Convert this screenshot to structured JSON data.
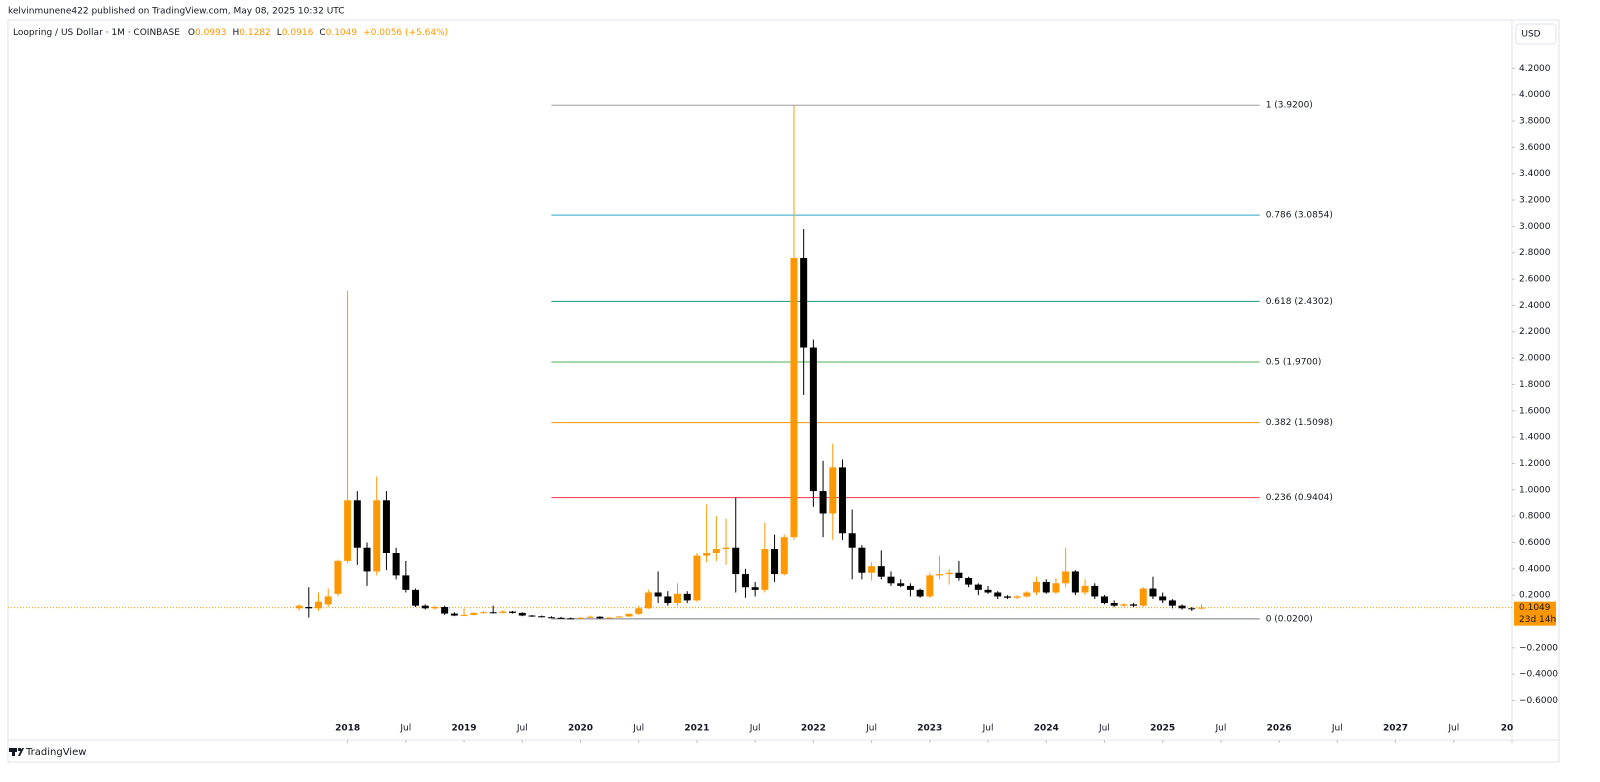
{
  "published": "kelvinmunene422 published on TradingView.com, May 08, 2025 10:32 UTC",
  "brand": "TradingView",
  "chart_data": {
    "type": "candlestick",
    "symbol": "Loopring / US Dollar · 1M · COINBASE",
    "ohlc": [
      {
        "label": "O",
        "value": 0.0993
      },
      {
        "label": "H",
        "value": 0.1282
      },
      {
        "label": "L",
        "value": 0.0916
      },
      {
        "label": "C",
        "value": 0.1049
      }
    ],
    "change": "+0.0056 (+5.64%)",
    "currency": "USD",
    "up_color": "#ff9800",
    "down_color": "#000000",
    "x": [
      "2017-08",
      "2017-09",
      "2017-10",
      "2017-11",
      "2017-12",
      "2018-01",
      "2018-02",
      "2018-03",
      "2018-04",
      "2018-05",
      "2018-06",
      "2018-07",
      "2018-08",
      "2018-09",
      "2018-10",
      "2018-11",
      "2018-12",
      "2019-01",
      "2019-02",
      "2019-03",
      "2019-04",
      "2019-05",
      "2019-06",
      "2019-07",
      "2019-08",
      "2019-09",
      "2019-10",
      "2019-11",
      "2019-12",
      "2020-01",
      "2020-02",
      "2020-03",
      "2020-04",
      "2020-05",
      "2020-06",
      "2020-07",
      "2020-08",
      "2020-09",
      "2020-10",
      "2020-11",
      "2020-12",
      "2021-01",
      "2021-02",
      "2021-03",
      "2021-04",
      "2021-05",
      "2021-06",
      "2021-07",
      "2021-08",
      "2021-09",
      "2021-10",
      "2021-11",
      "2021-12",
      "2022-01",
      "2022-02",
      "2022-03",
      "2022-04",
      "2022-05",
      "2022-06",
      "2022-07",
      "2022-08",
      "2022-09",
      "2022-10",
      "2022-11",
      "2022-12",
      "2023-01",
      "2023-02",
      "2023-03",
      "2023-04",
      "2023-05",
      "2023-06",
      "2023-07",
      "2023-08",
      "2023-09",
      "2023-10",
      "2023-11",
      "2023-12",
      "2024-01",
      "2024-02",
      "2024-03",
      "2024-04",
      "2024-05",
      "2024-06",
      "2024-07",
      "2024-08",
      "2024-09",
      "2024-10",
      "2024-11",
      "2024-12",
      "2025-01",
      "2025-02",
      "2025-03",
      "2025-04",
      "2025-05"
    ],
    "open": [
      0.1,
      0.11,
      0.1,
      0.13,
      0.21,
      0.46,
      0.92,
      0.56,
      0.38,
      0.92,
      0.52,
      0.35,
      0.24,
      0.12,
      0.1,
      0.11,
      0.06,
      0.045,
      0.05,
      0.065,
      0.07,
      0.065,
      0.075,
      0.065,
      0.045,
      0.04,
      0.032,
      0.028,
      0.024,
      0.022,
      0.028,
      0.036,
      0.024,
      0.03,
      0.038,
      0.058,
      0.1,
      0.22,
      0.19,
      0.14,
      0.21,
      0.16,
      0.5,
      0.52,
      0.55,
      0.56,
      0.36,
      0.26,
      0.24,
      0.55,
      0.36,
      0.64,
      2.76,
      2.08,
      0.99,
      0.82,
      1.17,
      0.67,
      0.56,
      0.37,
      0.42,
      0.34,
      0.29,
      0.27,
      0.24,
      0.19,
      0.35,
      0.36,
      0.37,
      0.33,
      0.28,
      0.24,
      0.22,
      0.19,
      0.18,
      0.19,
      0.22,
      0.3,
      0.22,
      0.29,
      0.38,
      0.22,
      0.27,
      0.19,
      0.14,
      0.12,
      0.13,
      0.12,
      0.25,
      0.19,
      0.16,
      0.12,
      0.1,
      0.0993
    ],
    "high": [
      0.13,
      0.26,
      0.22,
      0.25,
      0.47,
      2.51,
      0.99,
      0.6,
      1.1,
      0.99,
      0.56,
      0.46,
      0.25,
      0.13,
      0.12,
      0.12,
      0.07,
      0.1,
      0.07,
      0.08,
      0.12,
      0.085,
      0.08,
      0.07,
      0.05,
      0.045,
      0.04,
      0.035,
      0.03,
      0.032,
      0.045,
      0.04,
      0.032,
      0.04,
      0.06,
      0.12,
      0.24,
      0.38,
      0.23,
      0.29,
      0.23,
      0.52,
      0.89,
      0.8,
      0.78,
      0.94,
      0.4,
      0.3,
      0.75,
      0.66,
      0.66,
      3.92,
      2.98,
      2.14,
      1.22,
      1.35,
      1.23,
      0.85,
      0.58,
      0.45,
      0.54,
      0.38,
      0.32,
      0.29,
      0.25,
      0.37,
      0.5,
      0.4,
      0.46,
      0.34,
      0.29,
      0.27,
      0.23,
      0.2,
      0.2,
      0.23,
      0.34,
      0.32,
      0.33,
      0.56,
      0.39,
      0.32,
      0.29,
      0.2,
      0.16,
      0.14,
      0.14,
      0.26,
      0.34,
      0.22,
      0.17,
      0.13,
      0.11,
      0.1282
    ],
    "low": [
      0.08,
      0.03,
      0.08,
      0.11,
      0.19,
      0.44,
      0.43,
      0.27,
      0.35,
      0.39,
      0.32,
      0.22,
      0.11,
      0.09,
      0.09,
      0.05,
      0.04,
      0.04,
      0.045,
      0.06,
      0.06,
      0.06,
      0.06,
      0.04,
      0.035,
      0.03,
      0.025,
      0.02,
      0.02,
      0.02,
      0.026,
      0.02,
      0.022,
      0.028,
      0.035,
      0.05,
      0.095,
      0.14,
      0.12,
      0.12,
      0.14,
      0.15,
      0.45,
      0.46,
      0.43,
      0.22,
      0.18,
      0.19,
      0.22,
      0.3,
      0.35,
      0.62,
      1.72,
      0.87,
      0.64,
      0.62,
      0.62,
      0.32,
      0.32,
      0.31,
      0.32,
      0.27,
      0.26,
      0.19,
      0.18,
      0.18,
      0.32,
      0.28,
      0.31,
      0.26,
      0.2,
      0.21,
      0.17,
      0.17,
      0.17,
      0.18,
      0.2,
      0.21,
      0.21,
      0.26,
      0.2,
      0.2,
      0.17,
      0.13,
      0.11,
      0.11,
      0.11,
      0.11,
      0.17,
      0.14,
      0.1,
      0.09,
      0.08,
      0.0916
    ],
    "close": [
      0.12,
      0.1,
      0.15,
      0.19,
      0.46,
      0.92,
      0.56,
      0.38,
      0.92,
      0.52,
      0.35,
      0.24,
      0.12,
      0.1,
      0.11,
      0.06,
      0.045,
      0.05,
      0.065,
      0.07,
      0.065,
      0.075,
      0.065,
      0.045,
      0.04,
      0.032,
      0.028,
      0.024,
      0.022,
      0.028,
      0.036,
      0.024,
      0.03,
      0.038,
      0.058,
      0.1,
      0.22,
      0.19,
      0.14,
      0.21,
      0.16,
      0.5,
      0.52,
      0.55,
      0.56,
      0.36,
      0.26,
      0.24,
      0.55,
      0.36,
      0.64,
      2.76,
      2.08,
      0.99,
      0.82,
      1.17,
      0.67,
      0.56,
      0.37,
      0.42,
      0.34,
      0.29,
      0.27,
      0.24,
      0.19,
      0.35,
      0.36,
      0.37,
      0.33,
      0.28,
      0.24,
      0.22,
      0.19,
      0.18,
      0.19,
      0.22,
      0.3,
      0.22,
      0.29,
      0.38,
      0.22,
      0.27,
      0.19,
      0.14,
      0.12,
      0.13,
      0.12,
      0.25,
      0.19,
      0.16,
      0.12,
      0.1,
      0.0993,
      0.1049
    ],
    "xlim": [
      "2015-02",
      "2028-01"
    ],
    "xticks": [
      {
        "value": "2018-01",
        "label": "2018"
      },
      {
        "value": "2018-07",
        "label": "Jul"
      },
      {
        "value": "2019-01",
        "label": "2019"
      },
      {
        "value": "2019-07",
        "label": "Jul"
      },
      {
        "value": "2020-01",
        "label": "2020"
      },
      {
        "value": "2020-07",
        "label": "Jul"
      },
      {
        "value": "2021-01",
        "label": "2021"
      },
      {
        "value": "2021-07",
        "label": "Jul"
      },
      {
        "value": "2022-01",
        "label": "2022"
      },
      {
        "value": "2022-07",
        "label": "Jul"
      },
      {
        "value": "2023-01",
        "label": "2023"
      },
      {
        "value": "2023-07",
        "label": "Jul"
      },
      {
        "value": "2024-01",
        "label": "2024"
      },
      {
        "value": "2024-07",
        "label": "Jul"
      },
      {
        "value": "2025-01",
        "label": "2025"
      },
      {
        "value": "2025-07",
        "label": "Jul"
      },
      {
        "value": "2026-01",
        "label": "2026"
      },
      {
        "value": "2026-07",
        "label": "Jul"
      },
      {
        "value": "2027-01",
        "label": "2027"
      },
      {
        "value": "2027-07",
        "label": "Jul"
      },
      {
        "value": "2028-01",
        "label": "20"
      }
    ],
    "ylim": [
      -0.9,
      4.4
    ],
    "yticks": [
      {
        "value": 4.2,
        "label": "4.2000"
      },
      {
        "value": 4.0,
        "label": "4.0000"
      },
      {
        "value": 3.8,
        "label": "3.8000"
      },
      {
        "value": 3.6,
        "label": "3.6000"
      },
      {
        "value": 3.4,
        "label": "3.4000"
      },
      {
        "value": 3.2,
        "label": "3.2000"
      },
      {
        "value": 3.0,
        "label": "3.0000"
      },
      {
        "value": 2.8,
        "label": "2.8000"
      },
      {
        "value": 2.6,
        "label": "2.6000"
      },
      {
        "value": 2.4,
        "label": "2.4000"
      },
      {
        "value": 2.2,
        "label": "2.2000"
      },
      {
        "value": 2.0,
        "label": "2.0000"
      },
      {
        "value": 1.8,
        "label": "1.8000"
      },
      {
        "value": 1.6,
        "label": "1.6000"
      },
      {
        "value": 1.4,
        "label": "1.4000"
      },
      {
        "value": 1.2,
        "label": "1.2000"
      },
      {
        "value": 1.0,
        "label": "1.0000"
      },
      {
        "value": 0.8,
        "label": "0.8000"
      },
      {
        "value": 0.6,
        "label": "0.6000"
      },
      {
        "value": 0.4,
        "label": "0.4000"
      },
      {
        "value": 0.2,
        "label": "0.2000"
      },
      {
        "value": -0.2,
        "label": "−0.2000"
      },
      {
        "value": -0.4,
        "label": "−0.4000"
      },
      {
        "value": -0.6,
        "label": "−0.6000"
      }
    ],
    "grid": false,
    "fib_x": [
      "2019-10",
      "2025-11"
    ],
    "fib_levels": [
      {
        "value": 3.92,
        "label": "1 (3.9200)",
        "color": "#9e9e9e"
      },
      {
        "value": 3.0854,
        "label": "0.786 (3.0854)",
        "color": "#29a6c9"
      },
      {
        "value": 2.4302,
        "label": "0.618 (2.4302)",
        "color": "#159980"
      },
      {
        "value": 1.97,
        "label": "0.5 (1.9700)",
        "color": "#4caf50"
      },
      {
        "value": 1.5098,
        "label": "0.382 (1.5098)",
        "color": "#f5940c"
      },
      {
        "value": 0.9404,
        "label": "0.236 (0.9404)",
        "color": "#f23645"
      },
      {
        "value": 0.02,
        "label": "0 (0.0200)",
        "color": "#787b86"
      }
    ],
    "last_price": 0.1049,
    "countdown": "23d 14h"
  }
}
